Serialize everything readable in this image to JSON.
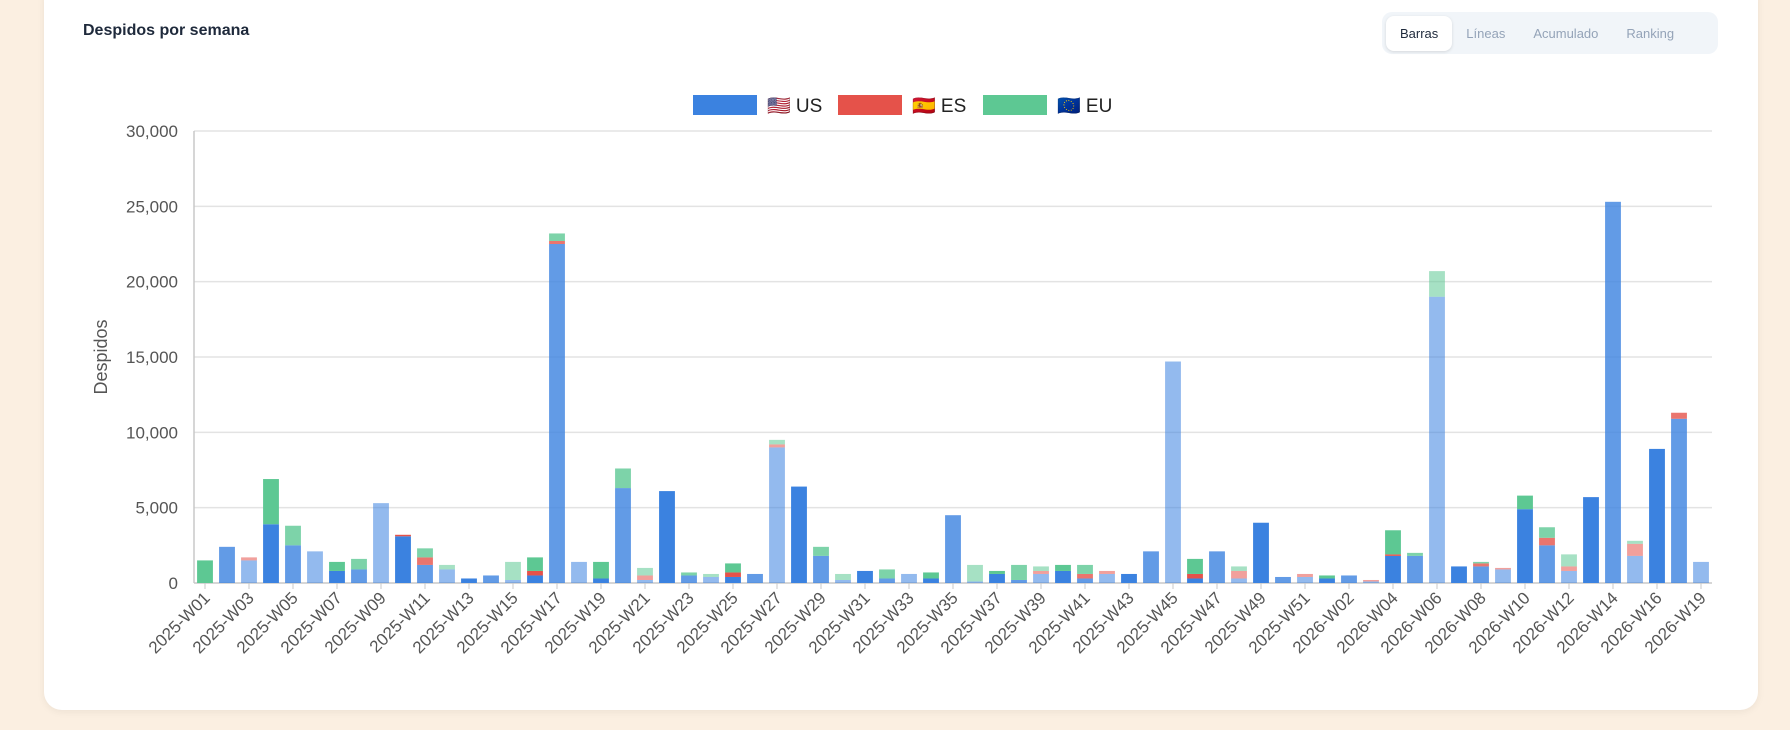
{
  "card": {
    "title": "Despidos por semana"
  },
  "tabs": [
    {
      "label": "Barras",
      "active": true
    },
    {
      "label": "Líneas",
      "active": false
    },
    {
      "label": "Acumulado",
      "active": false
    },
    {
      "label": "Ranking",
      "active": false
    }
  ],
  "chart_data": {
    "type": "bar",
    "stacked": true,
    "ylabel": "Despidos",
    "ylim": [
      0,
      30000
    ],
    "yticks": [
      "0",
      "5,000",
      "10,000",
      "15,000",
      "20,000",
      "25,000",
      "30,000"
    ],
    "grid": true,
    "legend_position": "top",
    "categories": [
      "2025-W01",
      "2025-W02",
      "2025-W03",
      "2025-W04",
      "2025-W05",
      "2025-W06",
      "2025-W07",
      "2025-W08",
      "2025-W09",
      "2025-W10",
      "2025-W11",
      "2025-W12",
      "2025-W13",
      "2025-W14",
      "2025-W15",
      "2025-W16",
      "2025-W17",
      "2025-W18",
      "2025-W19",
      "2025-W20",
      "2025-W21",
      "2025-W22",
      "2025-W23",
      "2025-W24",
      "2025-W25",
      "2025-W26",
      "2025-W27",
      "2025-W28",
      "2025-W29",
      "2025-W30",
      "2025-W31",
      "2025-W32",
      "2025-W33",
      "2025-W34",
      "2025-W35",
      "2025-W36",
      "2025-W37",
      "2025-W38",
      "2025-W39",
      "2025-W40",
      "2025-W41",
      "2025-W42",
      "2025-W43",
      "2025-W44",
      "2025-W45",
      "2025-W46",
      "2025-W47",
      "2025-W48",
      "2025-W49",
      "2025-W50",
      "2025-W51",
      "2025-W52",
      "2026-W02",
      "2026-W03",
      "2026-W04",
      "2026-W05",
      "2026-W06",
      "2026-W07",
      "2026-W08",
      "2026-W09",
      "2026-W10",
      "2026-W11",
      "2026-W12",
      "2026-W13",
      "2026-W14",
      "2026-W15",
      "2026-W16",
      "2026-W17",
      "2026-W19"
    ],
    "tick_labels": [
      "2025-W01",
      "2025-W03",
      "2025-W05",
      "2025-W07",
      "2025-W09",
      "2025-W11",
      "2025-W13",
      "2025-W15",
      "2025-W17",
      "2025-W19",
      "2025-W21",
      "2025-W23",
      "2025-W25",
      "2025-W27",
      "2025-W29",
      "2025-W31",
      "2025-W33",
      "2025-W35",
      "2025-W37",
      "2025-W39",
      "2025-W41",
      "2025-W43",
      "2025-W45",
      "2025-W47",
      "2025-W49",
      "2025-W51",
      "2026-W02",
      "2026-W04",
      "2026-W06",
      "2026-W08",
      "2026-W10",
      "2026-W12",
      "2026-W14",
      "2026-W16",
      "2026-W19"
    ],
    "series": [
      {
        "name": "US",
        "flag": "🇺🇸",
        "color": "#3b82e0",
        "values": [
          0,
          2400,
          1500,
          3900,
          2500,
          2100,
          800,
          900,
          5300,
          3100,
          1200,
          900,
          300,
          500,
          200,
          500,
          22500,
          1400,
          300,
          6300,
          200,
          6100,
          500,
          400,
          400,
          600,
          9000,
          6400,
          1800,
          200,
          800,
          300,
          600,
          300,
          4500,
          100,
          600,
          200,
          600,
          800,
          300,
          600,
          600,
          2100,
          14700,
          300,
          2100,
          300,
          4000,
          400,
          400,
          300,
          500,
          100,
          1800,
          1800,
          19000,
          1100,
          1100,
          900,
          4900,
          2500,
          800,
          5700,
          25300,
          1800,
          8900,
          10900,
          1400
        ]
      },
      {
        "name": "ES",
        "flag": "🇪🇸",
        "color": "#e5524a",
        "values": [
          0,
          0,
          200,
          0,
          0,
          0,
          0,
          0,
          0,
          100,
          500,
          0,
          0,
          0,
          0,
          300,
          200,
          0,
          0,
          0,
          300,
          0,
          0,
          0,
          300,
          0,
          200,
          0,
          0,
          0,
          0,
          0,
          0,
          0,
          0,
          0,
          0,
          0,
          200,
          0,
          300,
          200,
          0,
          0,
          0,
          300,
          0,
          500,
          0,
          0,
          200,
          0,
          0,
          100,
          100,
          0,
          0,
          0,
          200,
          100,
          0,
          500,
          300,
          0,
          0,
          800,
          0,
          400,
          0
        ]
      },
      {
        "name": "EU",
        "flag": "🇪🇺",
        "color": "#5dc893",
        "values": [
          1500,
          0,
          0,
          3000,
          1300,
          0,
          600,
          700,
          0,
          0,
          600,
          300,
          0,
          0,
          1200,
          900,
          500,
          0,
          1100,
          1300,
          500,
          0,
          200,
          200,
          600,
          0,
          300,
          0,
          600,
          400,
          0,
          600,
          0,
          400,
          0,
          1100,
          200,
          1000,
          300,
          400,
          600,
          0,
          0,
          0,
          0,
          1000,
          0,
          300,
          0,
          0,
          0,
          200,
          0,
          0,
          1600,
          200,
          1700,
          0,
          100,
          0,
          900,
          700,
          800,
          0,
          0,
          200,
          0,
          0,
          0
        ]
      }
    ]
  }
}
